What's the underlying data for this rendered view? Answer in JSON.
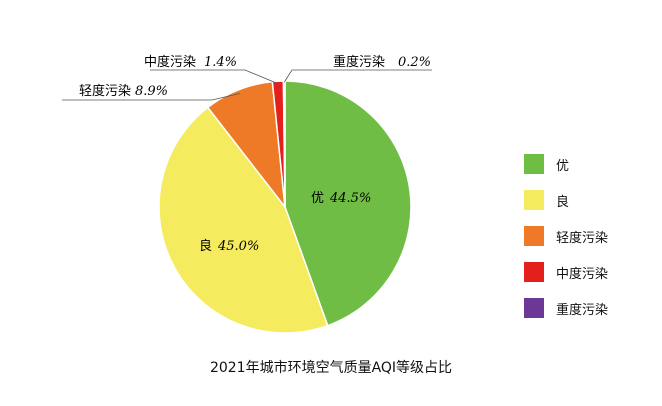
{
  "chart_data": {
    "type": "pie",
    "title": "2021年城市环境空气质量AQI等级占比",
    "slices": [
      {
        "name": "优",
        "value": 44.5,
        "label": "44.5%",
        "color": "#6FBD45"
      },
      {
        "name": "良",
        "value": 45.0,
        "label": "45.0%",
        "color": "#F4EC5E"
      },
      {
        "name": "轻度污染",
        "value": 8.9,
        "label": "8.9%",
        "color": "#EE7A28"
      },
      {
        "name": "中度污染",
        "value": 1.4,
        "label": "1.4%",
        "color": "#E4201D"
      },
      {
        "name": "重度污染",
        "value": 0.2,
        "label": "0.2%",
        "color": "#6B3896"
      }
    ],
    "legend_placement": "right"
  }
}
